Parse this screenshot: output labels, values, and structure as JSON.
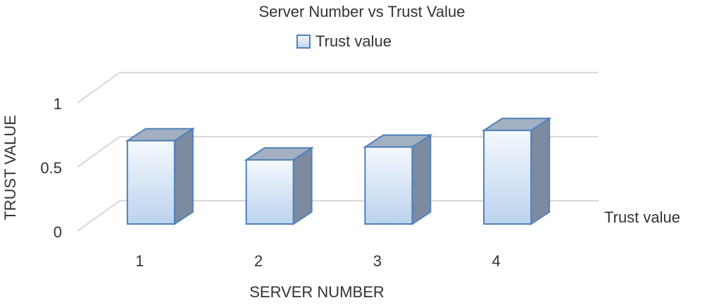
{
  "chart_data": {
    "type": "bar3d",
    "title": "Server Number vs Trust Value",
    "x_label": "SERVER NUMBER",
    "y_label": "TRUST VALUE",
    "categories": [
      "1",
      "2",
      "3",
      "4"
    ],
    "series": [
      {
        "name": "Trust value",
        "color": "#4f81bd",
        "values": [
          0.65,
          0.5,
          0.6,
          0.73
        ]
      }
    ],
    "ylim": [
      0,
      1
    ],
    "yticks": [
      0,
      0.5,
      1
    ],
    "grid": true
  }
}
